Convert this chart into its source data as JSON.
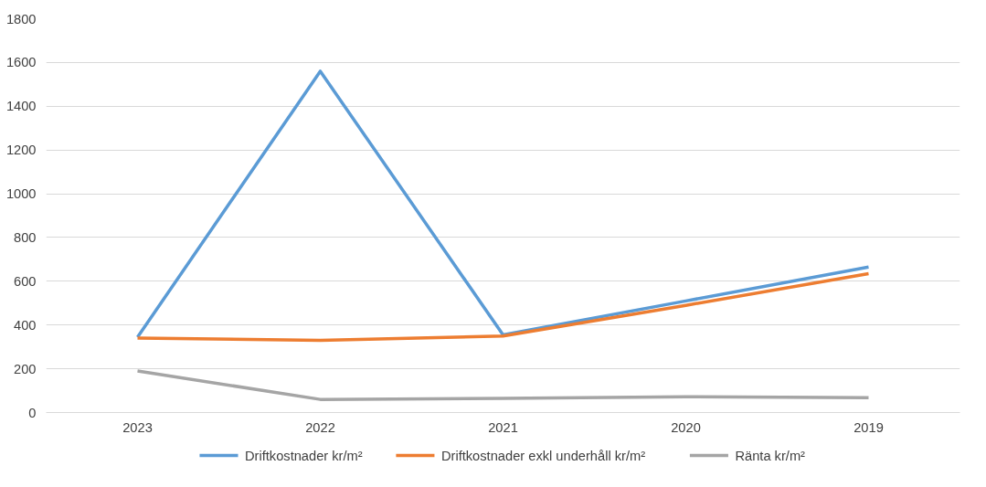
{
  "chart_data": {
    "type": "line",
    "categories": [
      "2023",
      "2022",
      "2021",
      "2020",
      "2019"
    ],
    "series": [
      {
        "name": "Driftkostnader kr/m²",
        "color": "#5b9bd5",
        "values": [
          345,
          1560,
          355,
          510,
          665
        ]
      },
      {
        "name": "Driftkostnader exkl underhåll kr/m²",
        "color": "#ed7d31",
        "values": [
          340,
          330,
          350,
          490,
          635
        ]
      },
      {
        "name": "Ränta kr/m²",
        "color": "#a5a5a5",
        "values": [
          190,
          60,
          65,
          72,
          68
        ]
      }
    ],
    "ylim": [
      0,
      1800
    ],
    "yticks": [
      0,
      200,
      400,
      600,
      800,
      1000,
      1200,
      1400,
      1600,
      1800
    ],
    "grid": "y",
    "legend": "bottom",
    "marker": "none",
    "line_style": "solid"
  }
}
